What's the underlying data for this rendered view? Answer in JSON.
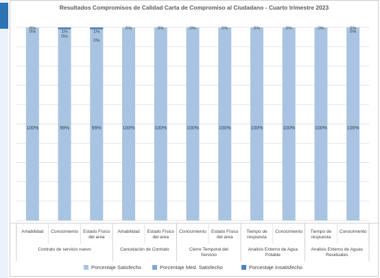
{
  "chart_data": {
    "type": "bar",
    "stacked": true,
    "percent": true,
    "title": "Resultados Compromisos de Calidad Carta de Compromiso al Ciudadano - Cuarto trimestre  2023",
    "categories": [
      {
        "label": "Amabilidad",
        "group": "Contrato de servicio nuevo"
      },
      {
        "label": "Conocimiento",
        "group": "Contrato de servicio nuevo"
      },
      {
        "label": "Estado Físico del area",
        "group": "Contrato de servicio nuevo"
      },
      {
        "label": "Amabilidad",
        "group": "Cancelación de Contrato"
      },
      {
        "label": "Estado Físico del area",
        "group": "Cancelación de Contrato"
      },
      {
        "label": "Conocimiento",
        "group": "Cierre Temporal del Servicio"
      },
      {
        "label": "Estado Físico del area",
        "group": "Cierre Temporal del Servicio"
      },
      {
        "label": "Tiempo de respuesta",
        "group": "Analisis Externo de Agua Potable"
      },
      {
        "label": "Conocimiento",
        "group": "Analisis Externo de Agua Potable"
      },
      {
        "label": "Tiempo de respuesta",
        "group": "Analisis Externo de Aguas Residuales"
      },
      {
        "label": "Conocimiento",
        "group": "Analisis Externo de Aguas Residuales"
      }
    ],
    "groups": [
      "Contrato de servicio nuevo",
      "Cancelación de Contrato",
      "Cierre Temporal del Servicio",
      "Analisis Externo de Agua Potable",
      "Analisis Externo de Aguas Residuales"
    ],
    "series": [
      {
        "name": "Porcentaje Satisfecho",
        "color": "#a9c4e2",
        "values": [
          100,
          99,
          99,
          100,
          100,
          100,
          100,
          100,
          100,
          100,
          100
        ]
      },
      {
        "name": "Porcentaje  Med. Satisfecho",
        "color": "#7ea6d3",
        "values": [
          0,
          0,
          0,
          0,
          0,
          0,
          0,
          0,
          0,
          0,
          0
        ]
      },
      {
        "name": "Porcentaje Insatisfecho",
        "color": "#4f81bd",
        "values": [
          0,
          1,
          1,
          0,
          0,
          0,
          0,
          0,
          0,
          0,
          0
        ]
      }
    ],
    "data_labels": [
      {
        "satisfied": "100%",
        "small": [
          "0%",
          "0%"
        ]
      },
      {
        "satisfied": "99%",
        "small": [
          "1%",
          "0%"
        ]
      },
      {
        "satisfied": "99%",
        "small": [
          "1%",
          "0%"
        ]
      },
      {
        "satisfied": "100%",
        "small": [
          "0%"
        ]
      },
      {
        "satisfied": "100%",
        "small": [
          "0%"
        ]
      },
      {
        "satisfied": "100%",
        "small": [
          "0%"
        ]
      },
      {
        "satisfied": "100%",
        "small": [
          "0%"
        ]
      },
      {
        "satisfied": "100%",
        "small": [
          "0%"
        ]
      },
      {
        "satisfied": "100%",
        "small": [
          "0%"
        ]
      },
      {
        "satisfied": "100%",
        "small": [
          "0%"
        ]
      },
      {
        "satisfied": "100%",
        "small": [
          "0%",
          "0%"
        ]
      }
    ],
    "ylim": [
      0,
      100
    ],
    "grid": true,
    "legend_position": "bottom"
  }
}
